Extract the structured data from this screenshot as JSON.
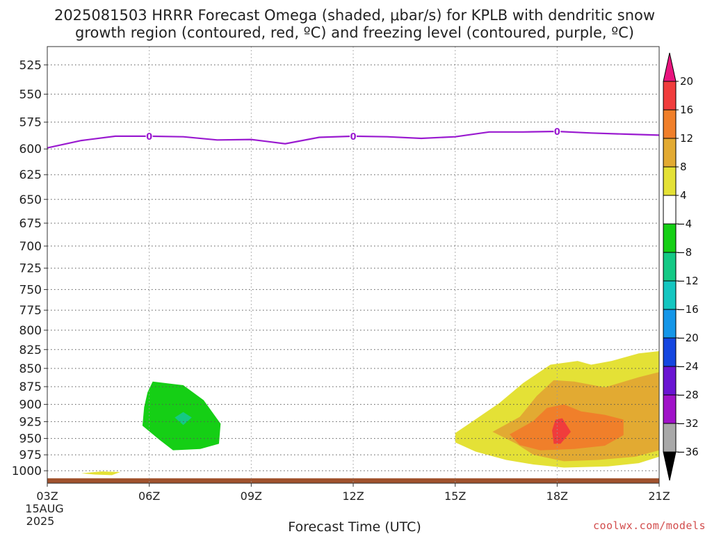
{
  "chart_data": {
    "type": "contour",
    "title_line1": "2025081503 HRRR Forecast Omega (shaded, μbar/s) for KPLB with dendritic snow",
    "title_line2": "growth region (contoured, red, ºC) and freezing level (contoured, purple, ºC)",
    "xlabel": "Forecast Time (UTC)",
    "ylabel": "",
    "y_scale": "log",
    "y_inverted": true,
    "y_ticks": [
      525,
      550,
      575,
      600,
      625,
      650,
      675,
      700,
      725,
      750,
      775,
      800,
      825,
      850,
      875,
      900,
      925,
      950,
      975,
      1000
    ],
    "x_tick_hours": [
      3,
      6,
      9,
      12,
      15,
      18,
      21
    ],
    "x_tick_labels": [
      "03Z",
      "06Z",
      "09Z",
      "12Z",
      "15Z",
      "18Z",
      "21Z"
    ],
    "x_date_label_1": "15AUG",
    "x_date_label_2": "2025",
    "xlim": [
      3,
      21
    ],
    "ylim": [
      1020,
      510
    ],
    "colorbar": {
      "ticks": [
        "20",
        "16",
        "12",
        "8",
        "4",
        "−4",
        "−8",
        "−12",
        "−16",
        "−20",
        "−24",
        "−28",
        "−32",
        "−36"
      ],
      "bands": [
        {
          "min": 20,
          "max": 24,
          "color": "#e8147e"
        },
        {
          "min": 16,
          "max": 20,
          "color": "#f03c3c"
        },
        {
          "min": 12,
          "max": 16,
          "color": "#f07f2a"
        },
        {
          "min": 8,
          "max": 12,
          "color": "#e2aa32"
        },
        {
          "min": 4,
          "max": 8,
          "color": "#e4e136"
        },
        {
          "min": -4,
          "max": 4,
          "color": "#ffffff"
        },
        {
          "min": -8,
          "max": -4,
          "color": "#15cf15"
        },
        {
          "min": -12,
          "max": -8,
          "color": "#14c985"
        },
        {
          "min": -16,
          "max": -12,
          "color": "#14c6c0"
        },
        {
          "min": -20,
          "max": -16,
          "color": "#1496e8"
        },
        {
          "min": -24,
          "max": -20,
          "color": "#1446e0"
        },
        {
          "min": -28,
          "max": -24,
          "color": "#6a14d2"
        },
        {
          "min": -32,
          "max": -28,
          "color": "#a012c8"
        },
        {
          "min": -36,
          "max": -32,
          "color": "#a8a8a8"
        }
      ]
    },
    "freezing_level": {
      "label": "0",
      "color": "#9a1ad0",
      "points": [
        [
          3,
          599
        ],
        [
          4,
          592
        ],
        [
          5,
          588
        ],
        [
          6,
          588
        ],
        [
          7,
          588.5
        ],
        [
          8,
          591.5
        ],
        [
          9,
          591
        ],
        [
          10,
          595
        ],
        [
          11,
          589
        ],
        [
          12,
          588
        ],
        [
          13,
          588.5
        ],
        [
          14,
          590
        ],
        [
          15,
          588.5
        ],
        [
          16,
          584
        ],
        [
          17,
          584
        ],
        [
          18,
          583.5
        ],
        [
          19,
          585
        ],
        [
          20,
          586
        ],
        [
          21,
          587
        ]
      ],
      "label_hours": [
        6,
        12,
        18
      ]
    },
    "omega_regions": [
      {
        "value": -6,
        "color": "#15cf15",
        "points": [
          [
            6.1,
            868
          ],
          [
            7.0,
            873
          ],
          [
            7.6,
            894
          ],
          [
            8.1,
            928
          ],
          [
            8.05,
            958
          ],
          [
            7.5,
            966
          ],
          [
            6.7,
            968
          ],
          [
            6.3,
            952
          ],
          [
            5.8,
            931
          ],
          [
            5.85,
            904
          ],
          [
            5.95,
            883
          ]
        ]
      },
      {
        "value": -10,
        "color": "#14c985",
        "points": [
          [
            6.75,
            919
          ],
          [
            7.0,
            911
          ],
          [
            7.25,
            919
          ],
          [
            7.0,
            930
          ]
        ]
      },
      {
        "value": 6,
        "color": "#e4e136",
        "points": [
          [
            15.0,
            942
          ],
          [
            15.5,
            925
          ],
          [
            16.3,
            898
          ],
          [
            17.0,
            870
          ],
          [
            17.8,
            845
          ],
          [
            18.6,
            840
          ],
          [
            19.0,
            845
          ],
          [
            19.6,
            840
          ],
          [
            20.4,
            830
          ],
          [
            21.0,
            827
          ],
          [
            21.0,
            978
          ],
          [
            20.4,
            988
          ],
          [
            19.5,
            993
          ],
          [
            18.2,
            995
          ],
          [
            17.3,
            990
          ],
          [
            16.5,
            983
          ],
          [
            15.6,
            970
          ],
          [
            15.0,
            956
          ]
        ]
      },
      {
        "value": 10,
        "color": "#e2aa32",
        "points": [
          [
            16.1,
            940
          ],
          [
            16.9,
            918
          ],
          [
            17.4,
            888
          ],
          [
            17.9,
            866
          ],
          [
            18.5,
            868
          ],
          [
            19.4,
            876
          ],
          [
            20.4,
            862
          ],
          [
            21.0,
            855
          ],
          [
            21.0,
            968
          ],
          [
            20.3,
            978
          ],
          [
            19.2,
            983
          ],
          [
            18.2,
            985
          ],
          [
            17.3,
            975
          ],
          [
            16.8,
            958
          ]
        ]
      },
      {
        "value": 14,
        "color": "#f07f2a",
        "points": [
          [
            16.6,
            944
          ],
          [
            17.3,
            924
          ],
          [
            17.7,
            905
          ],
          [
            18.2,
            900
          ],
          [
            18.7,
            910
          ],
          [
            19.4,
            915
          ],
          [
            19.95,
            922
          ],
          [
            19.95,
            945
          ],
          [
            19.4,
            961
          ],
          [
            18.5,
            966
          ],
          [
            17.5,
            968
          ],
          [
            16.9,
            960
          ]
        ]
      },
      {
        "value": 18,
        "color": "#f03c3c",
        "points": [
          [
            17.85,
            938
          ],
          [
            17.95,
            922
          ],
          [
            18.15,
            920
          ],
          [
            18.4,
            940
          ],
          [
            18.1,
            958
          ],
          [
            17.9,
            958
          ]
        ]
      },
      {
        "value": 6,
        "color": "#e4e136",
        "points": [
          [
            4.0,
            1004
          ],
          [
            4.6,
            1001
          ],
          [
            5.15,
            1002
          ],
          [
            4.9,
            1007
          ],
          [
            4.4,
            1006
          ]
        ]
      }
    ],
    "ground": {
      "color": "#a0522d",
      "surface_pressure": 1012
    }
  },
  "credit": "coolwx.com/models"
}
